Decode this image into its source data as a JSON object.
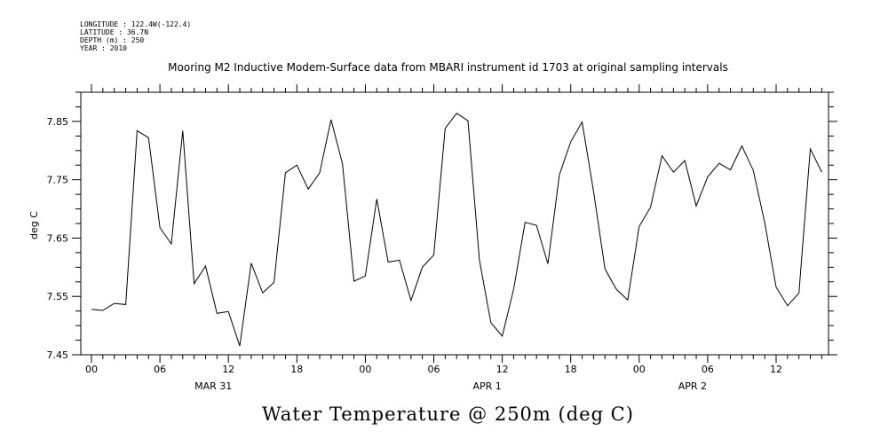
{
  "header": {
    "longitude": "LONGITUDE : 122.4W(-122.4)",
    "latitude": "LATITUDE : 36.7N",
    "depth": "DEPTH (m) : 250",
    "year": "YEAR : 2010"
  },
  "title": "Mooring M2 Inductive Modem-Surface data from MBARI instrument id 1703 at original sampling intervals",
  "bottom_title": "Water Temperature @ 250m (deg C)",
  "chart_data": {
    "type": "line",
    "title": "Mooring M2 Inductive Modem-Surface data from MBARI instrument id 1703 at original sampling intervals",
    "ylabel": "deg C",
    "xlabel": "Water Temperature @ 250m (deg C)",
    "ylim": [
      7.45,
      7.9
    ],
    "xlim": [
      -0.5,
      62.5
    ],
    "yticks": [
      7.45,
      7.55,
      7.65,
      7.75,
      7.85
    ],
    "ytick_labels": [
      "7.45",
      "7.55",
      "7.65",
      "7.75",
      "7.85"
    ],
    "xticks": [
      0,
      6,
      12,
      18,
      24,
      30,
      36,
      42,
      48,
      54,
      60
    ],
    "xtick_labels": [
      "00",
      "06",
      "12",
      "18",
      "00",
      "06",
      "12",
      "18",
      "00",
      "06",
      "12"
    ],
    "day_labels": [
      {
        "x": 12,
        "label": "MAR 31"
      },
      {
        "x": 36,
        "label": "APR  1"
      },
      {
        "x": 54,
        "label": "APR  2"
      }
    ],
    "x": [
      0,
      1,
      2,
      3,
      4,
      5,
      6,
      7,
      8,
      9,
      10,
      11,
      12,
      13,
      14,
      15,
      16,
      17,
      18,
      19,
      20,
      21,
      22,
      23,
      24,
      25,
      26,
      27,
      28,
      29,
      30,
      31,
      32,
      33,
      34,
      35,
      36,
      37,
      38,
      39,
      40,
      41,
      42,
      43,
      44,
      45,
      46,
      47,
      48,
      49,
      50,
      51,
      52,
      53,
      54,
      55,
      56,
      57,
      58,
      59,
      60,
      61,
      62
    ],
    "series": [
      {
        "values": [
          7.528,
          7.526,
          7.538,
          7.536,
          7.834,
          7.822,
          7.668,
          7.64,
          7.834,
          7.572,
          7.602,
          7.521,
          7.524,
          7.465,
          7.607,
          7.556,
          7.574,
          7.762,
          7.775,
          7.734,
          7.762,
          7.853,
          7.777,
          7.576,
          7.585,
          7.717,
          7.609,
          7.612,
          7.543,
          7.6,
          7.621,
          7.838,
          7.864,
          7.851,
          7.612,
          7.505,
          7.482,
          7.563,
          7.677,
          7.672,
          7.606,
          7.758,
          7.815,
          7.849,
          7.73,
          7.597,
          7.562,
          7.544,
          7.67,
          7.703,
          7.791,
          7.763,
          7.783,
          7.705,
          7.755,
          7.778,
          7.767,
          7.808,
          7.766,
          7.677,
          7.566,
          7.534,
          7.556
        ]
      }
    ],
    "extra_points": {
      "x": [
        63,
        64
      ],
      "values": [
        7.803,
        7.763
      ]
    }
  }
}
